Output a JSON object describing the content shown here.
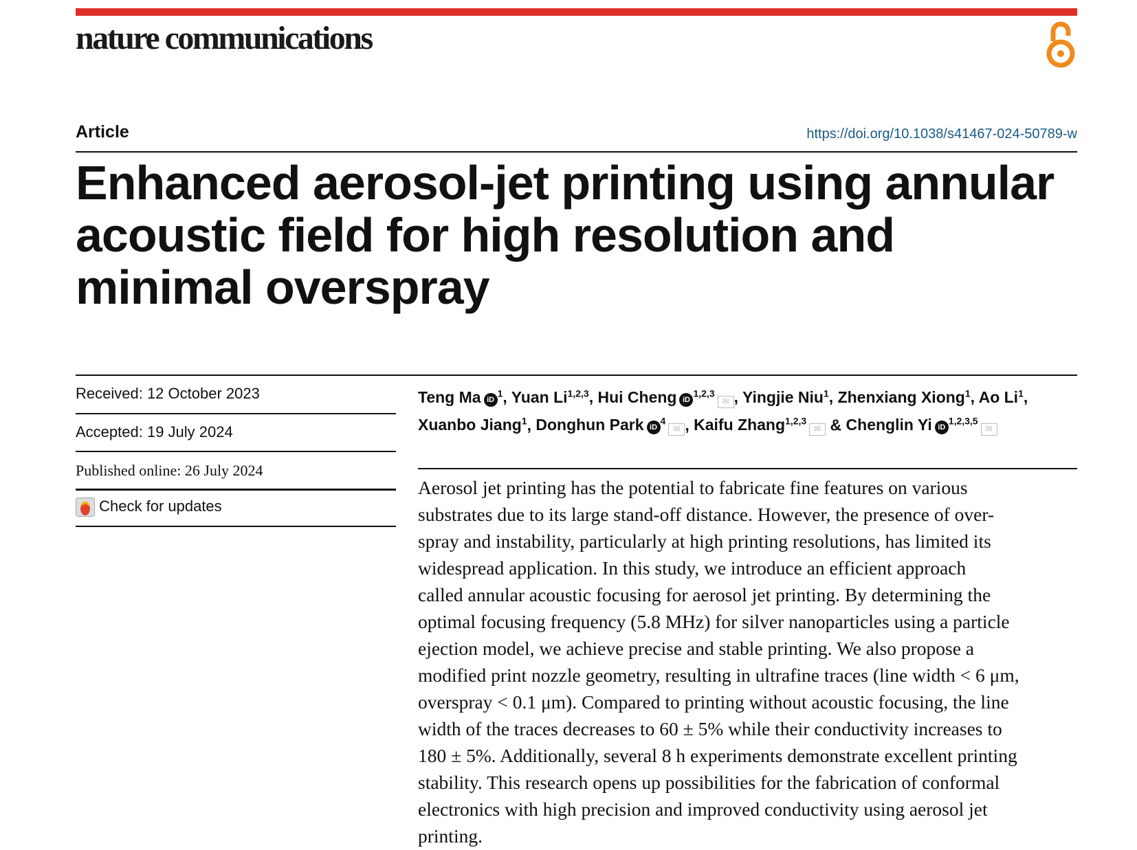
{
  "journal": "nature communications",
  "colors": {
    "accent_bar": "#e0302a",
    "open_access": "#f08a1c",
    "doi_link": "#1a5a85"
  },
  "icons": {
    "open_access": "open-access-lock-icon",
    "orcid": "orcid-icon",
    "email": "email-icon",
    "updates": "check-for-updates-icon"
  },
  "article_type": "Article",
  "doi": "https://doi.org/10.1038/s41467-024-50789-w",
  "title_lines": [
    "Enhanced aerosol-jet printing using annular",
    "acoustic field for high resolution and",
    "minimal overspray"
  ],
  "meta": {
    "received": "Received: 12 October 2023",
    "accepted": "Accepted: 19 July 2024",
    "published": "Published online: 26 July 2024",
    "updates": "Check for updates"
  },
  "authors": [
    {
      "name": "Teng Ma",
      "aff": "1",
      "orcid": true,
      "email": false
    },
    {
      "name": "Yuan Li",
      "aff": "1,2,3",
      "orcid": false,
      "email": false
    },
    {
      "name": "Hui Cheng",
      "aff": "1,2,3",
      "orcid": true,
      "email": true
    },
    {
      "name": "Yingjie Niu",
      "aff": "1",
      "orcid": false,
      "email": false
    },
    {
      "name": "Zhenxiang Xiong",
      "aff": "1",
      "orcid": false,
      "email": false
    },
    {
      "name": "Ao Li",
      "aff": "1",
      "orcid": false,
      "email": false
    },
    {
      "name": "Xuanbo Jiang",
      "aff": "1",
      "orcid": false,
      "email": false
    },
    {
      "name": "Donghun Park",
      "aff": "4",
      "orcid": true,
      "email": true
    },
    {
      "name": "Kaifu Zhang",
      "aff": "1,2,3",
      "orcid": false,
      "email": true
    },
    {
      "name": "Chenglin Yi",
      "aff": "1,2,3,5",
      "orcid": true,
      "email": true
    }
  ],
  "abstract_lines": [
    "Aerosol jet printing has the potential to fabricate fine features on various",
    "substrates due to its large stand-off distance. However, the presence of over-",
    "spray and instability, particularly at high printing resolutions, has limited its",
    "widespread application. In this study, we introduce an efficient approach",
    "called annular acoustic focusing for aerosol jet printing. By determining the",
    "optimal focusing frequency (5.8 MHz) for silver nanoparticles using a particle",
    "ejection model, we achieve precise and stable printing. We also propose a",
    "modified print nozzle geometry, resulting in ultrafine traces (line width < 6 μm,",
    "overspray < 0.1 μm). Compared to printing without acoustic focusing, the line",
    "width of the traces decreases to 60 ± 5% while their conductivity increases to",
    "180 ± 5%. Additionally, several 8 h experiments demonstrate excellent printing",
    "stability. This research opens up possibilities for the fabrication of conformal",
    "electronics with high precision and improved conductivity using aerosol jet",
    "printing."
  ]
}
